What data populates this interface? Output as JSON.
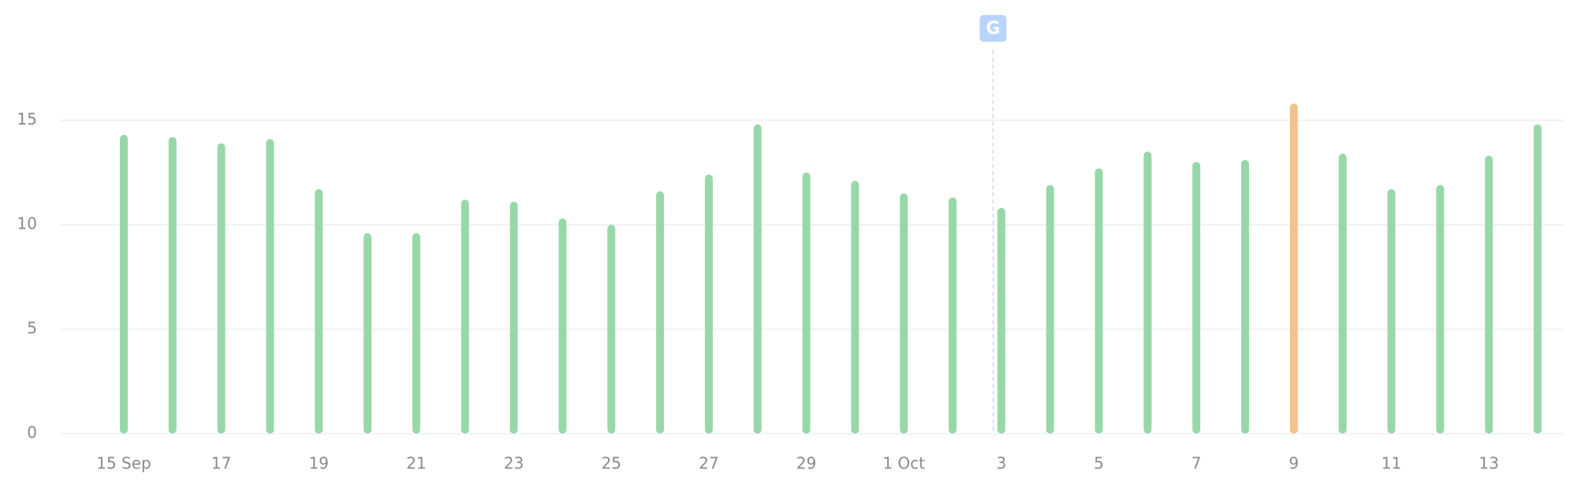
{
  "chart_data": {
    "type": "bar",
    "categories": [
      "15 Sep",
      null,
      "17",
      null,
      "19",
      null,
      "21",
      null,
      "23",
      null,
      "25",
      null,
      "27",
      null,
      "29",
      null,
      "1 Oct",
      null,
      "3",
      null,
      "5",
      null,
      "7",
      null,
      "9",
      null,
      "11",
      null,
      "13",
      null
    ],
    "values": [
      14.3,
      14.2,
      13.9,
      14.1,
      11.7,
      9.6,
      9.6,
      11.2,
      11.1,
      10.3,
      10.0,
      11.6,
      12.4,
      14.8,
      12.5,
      12.1,
      11.5,
      11.3,
      10.8,
      11.9,
      12.7,
      13.5,
      13.0,
      13.1,
      15.8,
      13.4,
      11.7,
      11.9,
      13.3,
      14.8
    ],
    "colors": [
      "#98d8a8",
      "#98d8a8",
      "#98d8a8",
      "#98d8a8",
      "#98d8a8",
      "#98d8a8",
      "#98d8a8",
      "#98d8a8",
      "#98d8a8",
      "#98d8a8",
      "#98d8a8",
      "#98d8a8",
      "#98d8a8",
      "#98d8a8",
      "#98d8a8",
      "#98d8a8",
      "#98d8a8",
      "#98d8a8",
      "#98d8a8",
      "#98d8a8",
      "#98d8a8",
      "#98d8a8",
      "#98d8a8",
      "#98d8a8",
      "#f3c38a",
      "#98d8a8",
      "#98d8a8",
      "#98d8a8",
      "#98d8a8",
      "#98d8a8"
    ],
    "ylim": [
      0,
      20
    ],
    "yticks": [
      0,
      5,
      10,
      15
    ],
    "grid": true,
    "annotation": {
      "label": "G"
    }
  }
}
